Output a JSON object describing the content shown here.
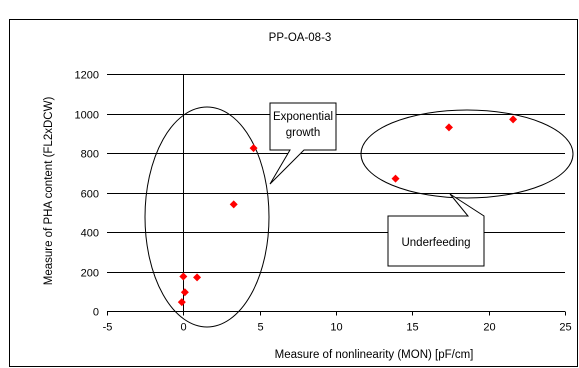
{
  "chart_data": {
    "type": "scatter",
    "title": "PP-OA-08-3",
    "xlabel": "Measure of nonlinearity (MON) [pF/cm]",
    "ylabel": "Measure of PHA content (FL2xDCW)",
    "xlim": [
      -5,
      25
    ],
    "ylim": [
      0,
      1200
    ],
    "x_ticks": [
      -5,
      0,
      5,
      10,
      15,
      20,
      25
    ],
    "y_ticks": [
      0,
      200,
      400,
      600,
      800,
      1000,
      1200
    ],
    "grid": "horizontal",
    "legend": "none",
    "marker": "diamond",
    "marker_color": "#ff0000",
    "series": [
      {
        "points": [
          {
            "x": -0.1,
            "y": 45
          },
          {
            "x": 0.1,
            "y": 95
          },
          {
            "x": 0.0,
            "y": 175
          },
          {
            "x": 0.9,
            "y": 170
          },
          {
            "x": 3.3,
            "y": 540
          },
          {
            "x": 4.6,
            "y": 825
          },
          {
            "x": 13.9,
            "y": 670
          },
          {
            "x": 17.4,
            "y": 930
          },
          {
            "x": 21.6,
            "y": 970
          }
        ]
      }
    ],
    "annotations": [
      {
        "text_lines": [
          "Exponential",
          "growth"
        ]
      },
      {
        "text_lines": [
          "Underfeeding"
        ]
      }
    ]
  }
}
